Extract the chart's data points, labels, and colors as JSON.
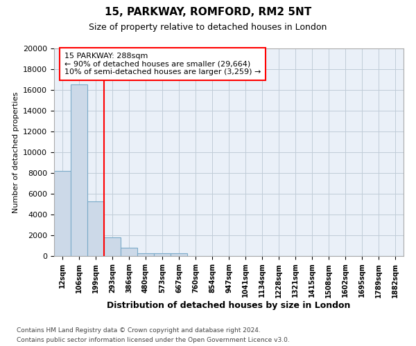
{
  "title1": "15, PARKWAY, ROMFORD, RM2 5NT",
  "title2": "Size of property relative to detached houses in London",
  "xlabel": "Distribution of detached houses by size in London",
  "ylabel": "Number of detached properties",
  "categories": [
    "12sqm",
    "106sqm",
    "199sqm",
    "293sqm",
    "386sqm",
    "480sqm",
    "573sqm",
    "667sqm",
    "760sqm",
    "854sqm",
    "947sqm",
    "1041sqm",
    "1134sqm",
    "1228sqm",
    "1321sqm",
    "1415sqm",
    "1508sqm",
    "1602sqm",
    "1695sqm",
    "1789sqm",
    "1882sqm"
  ],
  "values": [
    8200,
    16500,
    5300,
    1800,
    800,
    300,
    300,
    300,
    0,
    0,
    0,
    0,
    0,
    0,
    0,
    0,
    0,
    0,
    0,
    0,
    0
  ],
  "bar_color": "#ccd9e8",
  "bar_edge_color": "#7aaac8",
  "grid_color": "#c0ccd8",
  "bg_color": "#eaf0f8",
  "red_line_index": 2.5,
  "annotation_title": "15 PARKWAY: 288sqm",
  "annotation_line1": "← 90% of detached houses are smaller (29,664)",
  "annotation_line2": "10% of semi-detached houses are larger (3,259) →",
  "ylim": [
    0,
    20000
  ],
  "yticks": [
    0,
    2000,
    4000,
    6000,
    8000,
    10000,
    12000,
    14000,
    16000,
    18000,
    20000
  ],
  "footer1": "Contains HM Land Registry data © Crown copyright and database right 2024.",
  "footer2": "Contains public sector information licensed under the Open Government Licence v3.0."
}
